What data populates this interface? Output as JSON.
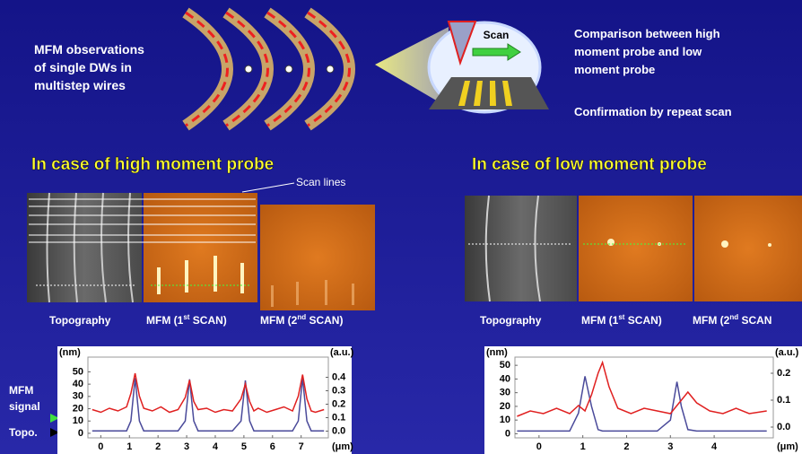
{
  "slide": {
    "intro": [
      "MFM observations",
      "of  single DWs in",
      "multistep wires"
    ],
    "scan": "Scan",
    "comparison": [
      "Comparison between high",
      "moment probe and low",
      "moment probe"
    ],
    "confirmation": "Confirmation by repeat scan",
    "high_heading": "In case of high moment probe",
    "low_heading": "In case of low moment probe",
    "scan_lines": "Scan lines",
    "high_captions": [
      [
        "Topography"
      ],
      [
        "MFM (1",
        "st",
        " SCAN)"
      ],
      [
        "MFM (2",
        "nd",
        " SCAN)"
      ]
    ],
    "low_captions": [
      [
        "Topography"
      ],
      [
        "MFM (1",
        "st",
        " SCAN)"
      ],
      [
        "MFM (2",
        "nd",
        " SCAN"
      ]
    ],
    "signal_label": [
      "MFM",
      "signal"
    ],
    "topo_label": "Topo."
  },
  "chart_data": [
    {
      "type": "line",
      "y_label": "(nm)",
      "y2_label": "(a.u.)",
      "x_label": "(μm)",
      "xlim": [
        -0.45,
        7.95
      ],
      "xticks": [
        0,
        1,
        2,
        3,
        4,
        5,
        6,
        7
      ],
      "ylim": [
        -3.7,
        62
      ],
      "yticks": [
        0,
        10,
        20,
        30,
        40,
        50
      ],
      "y2lim": [
        -0.05,
        0.55
      ],
      "y2ticks": [
        {
          "value": 0,
          "label": "0.0"
        },
        0.1,
        0.2,
        0.3,
        0.4
      ],
      "grid": false,
      "x": [
        -0.3,
        0,
        0.3,
        0.6,
        0.9,
        1.05,
        1.2,
        1.35,
        1.5,
        1.8,
        2.1,
        2.4,
        2.7,
        2.95,
        3.1,
        3.25,
        3.4,
        3.7,
        4.0,
        4.3,
        4.6,
        4.9,
        5.05,
        5.2,
        5.35,
        5.5,
        5.8,
        6.1,
        6.4,
        6.7,
        6.9,
        7.05,
        7.2,
        7.35,
        7.5,
        7.8
      ],
      "series": [
        {
          "color": "#4a4a9a",
          "values": [
            2,
            2,
            2,
            2,
            2,
            10,
            45,
            10,
            2,
            2,
            2,
            2,
            2,
            10,
            44,
            10,
            2,
            2,
            2,
            2,
            2,
            10,
            43,
            10,
            2,
            2,
            2,
            2,
            2,
            2,
            10,
            45,
            10,
            2,
            2,
            2
          ]
        },
        {
          "color": "#e02020",
          "axis": "y2",
          "values": [
            0.16,
            0.14,
            0.17,
            0.15,
            0.18,
            0.28,
            0.43,
            0.26,
            0.17,
            0.15,
            0.18,
            0.14,
            0.16,
            0.25,
            0.38,
            0.22,
            0.16,
            0.17,
            0.14,
            0.16,
            0.15,
            0.24,
            0.35,
            0.22,
            0.15,
            0.17,
            0.14,
            0.16,
            0.18,
            0.15,
            0.26,
            0.42,
            0.24,
            0.15,
            0.14,
            0.16
          ]
        }
      ]
    },
    {
      "type": "line",
      "y_label": "(nm)",
      "y2_label": "(a.u.)",
      "x_label": "(μm)",
      "xlim": [
        -0.55,
        5.35
      ],
      "xticks": [
        0,
        1,
        2,
        3,
        4
      ],
      "ylim": [
        -3,
        56
      ],
      "yticks": [
        0,
        10,
        20,
        30,
        40,
        50
      ],
      "y2lim": [
        -0.04,
        0.26
      ],
      "y2ticks": [
        {
          "value": 0,
          "label": "0.0"
        },
        0.1,
        0.2
      ],
      "grid": false,
      "x": [
        -0.5,
        -0.2,
        0.1,
        0.4,
        0.7,
        0.9,
        1.05,
        1.2,
        1.35,
        1.45,
        1.6,
        1.8,
        2.1,
        2.4,
        2.7,
        3.0,
        3.15,
        3.25,
        3.4,
        3.6,
        3.9,
        4.2,
        4.5,
        4.8,
        5.2
      ],
      "series": [
        {
          "color": "#4a4a9a",
          "values": [
            2,
            2,
            2,
            2,
            2,
            15,
            42,
            20,
            3,
            2,
            2,
            2,
            2,
            2,
            2,
            10,
            38,
            20,
            3,
            2,
            2,
            2,
            2,
            2,
            2
          ]
        },
        {
          "color": "#e02020",
          "axis": "y2",
          "values": [
            0.04,
            0.06,
            0.05,
            0.07,
            0.05,
            0.08,
            0.06,
            0.12,
            0.2,
            0.24,
            0.15,
            0.07,
            0.05,
            0.07,
            0.06,
            0.05,
            0.08,
            0.1,
            0.13,
            0.09,
            0.06,
            0.05,
            0.07,
            0.05,
            0.06
          ]
        }
      ]
    }
  ]
}
